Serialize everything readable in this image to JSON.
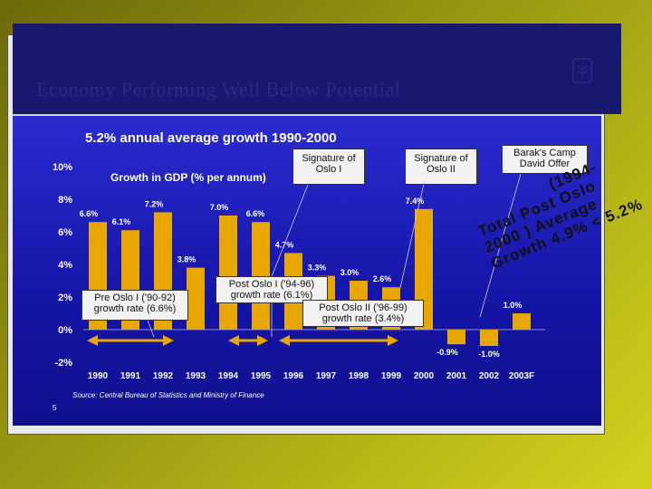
{
  "slide": {
    "title": "Economy Performing Well Below Potential",
    "subtitle": "5.2% annual average growth 1990-2000",
    "source": "Source: Central Bureau of Statistics and Ministry of Finance",
    "page_number": "5"
  },
  "callouts": {
    "sig_oslo1": "Signature of Oslo I",
    "sig_oslo2": "Signature of Oslo II",
    "camp_david": "Barak's Camp David Offer",
    "pre_oslo": "Pre Oslo I ('90-92) growth rate (6.6%)",
    "post_oslo1": "Post Oslo I ('94-96) growth rate (6.1%)",
    "post_oslo2": "Post Oslo II ('96-99) growth rate (3.4%)"
  },
  "diagonal_note": {
    "line1": "(1994-",
    "line2": "Total Post Oslo",
    "line3": "2000 ) Average",
    "line4": "Growth 4.9% < 5.2%"
  },
  "colors": {
    "bar": "#e8a600",
    "background": "#1a1ab8",
    "arrow": "#e8a600",
    "text": "#ffffff"
  },
  "chart_data": {
    "type": "bar",
    "title": "Growth in GDP (% per annum)",
    "categories": [
      "1990",
      "1991",
      "1992",
      "1993",
      "1994",
      "1995",
      "1996",
      "1997",
      "1998",
      "1999",
      "2000",
      "2001",
      "2002",
      "2003F"
    ],
    "values": [
      6.6,
      6.1,
      7.2,
      3.8,
      7.0,
      6.6,
      4.7,
      3.3,
      3.0,
      2.6,
      7.4,
      -0.9,
      -1.0,
      1.0
    ],
    "value_labels": [
      "6.6%",
      "6.1%",
      "7.2%",
      "3.8%",
      "7.0%",
      "6.6%",
      "4.7%",
      "3.3%",
      "3.0%",
      "2.6%",
      "7.4%",
      "-0.9%",
      "-1.0%",
      "1.0%"
    ],
    "ylim": [
      -2,
      10
    ],
    "yticks": [
      -2,
      0,
      2,
      4,
      6,
      8,
      10
    ],
    "ytick_labels": [
      "-2%",
      "0%",
      "2%",
      "4%",
      "6%",
      "8%",
      "10%"
    ],
    "grid": false
  }
}
